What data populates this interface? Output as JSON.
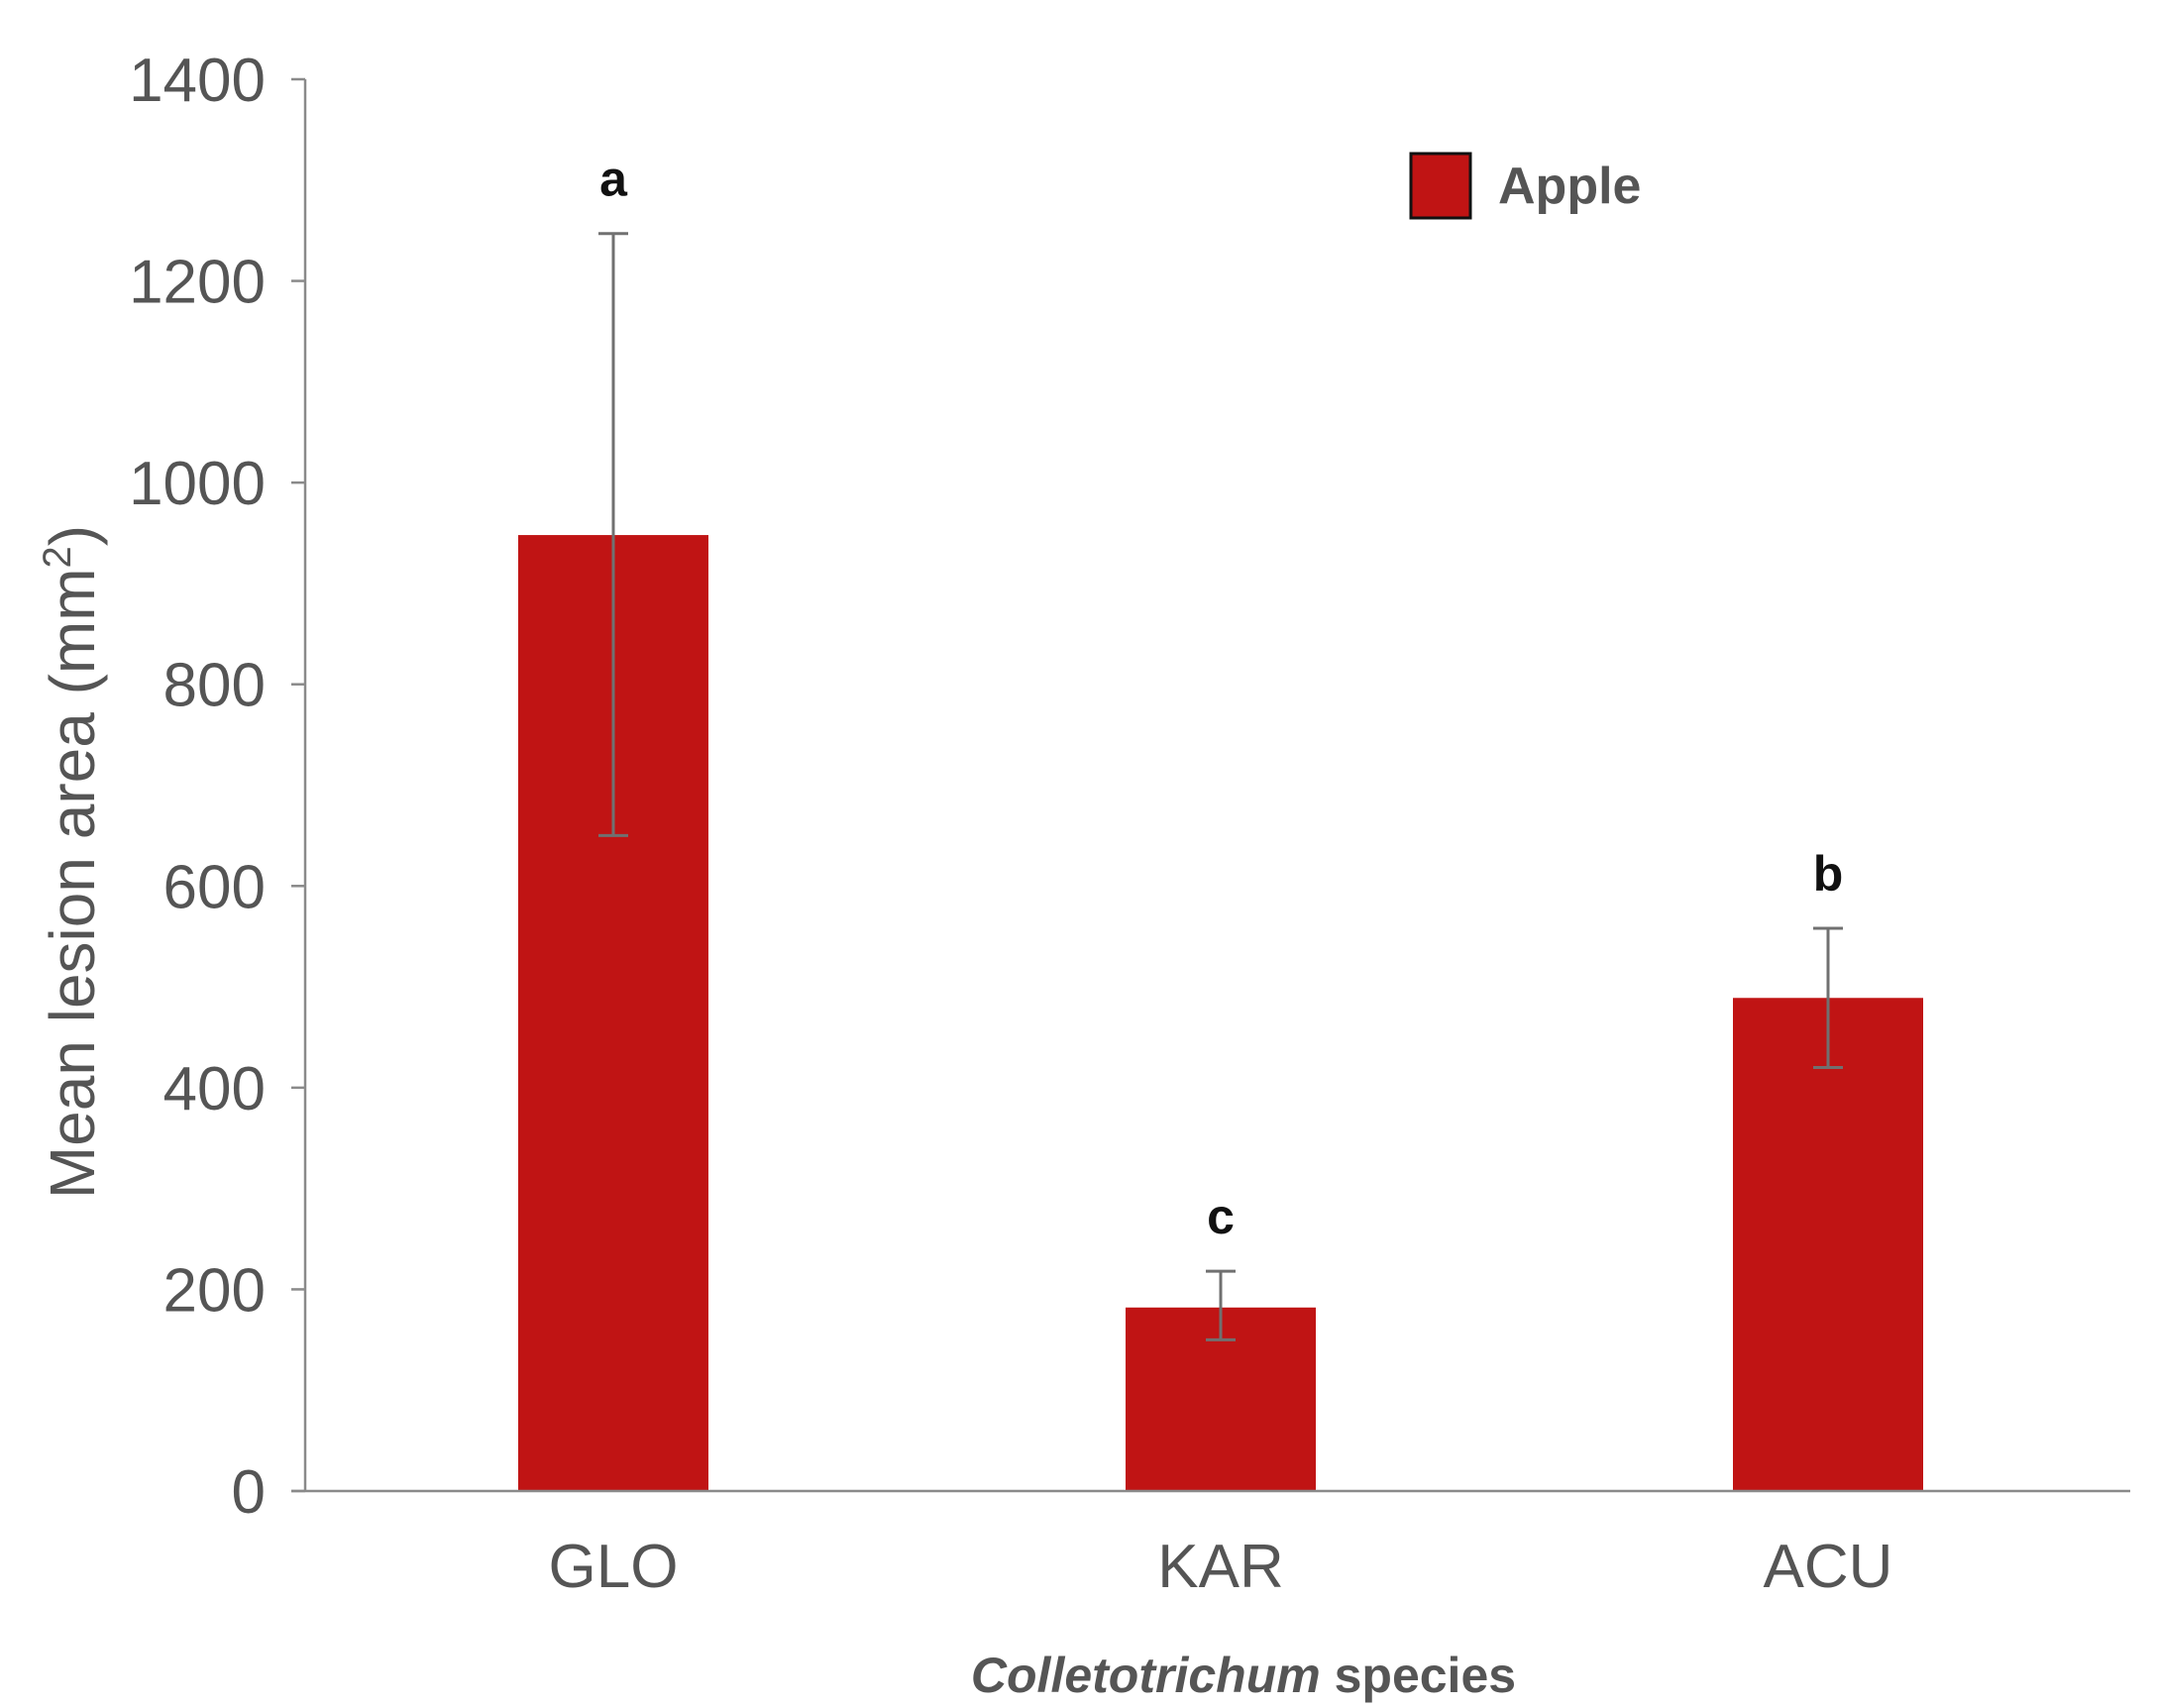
{
  "chart_data": {
    "type": "bar",
    "categories": [
      "GLO",
      "KAR",
      "ACU"
    ],
    "series": [
      {
        "name": "Apple",
        "color": "#c01414",
        "values": [
          948,
          182,
          489
        ],
        "error_upper": [
          1247,
          218,
          558
        ],
        "error_lower": [
          650,
          150,
          420
        ],
        "significance_letters": [
          "a",
          "c",
          "b"
        ]
      }
    ],
    "ylabel": "Mean lesion area (mm",
    "ylabel_superscript": "2",
    "ylabel_suffix": ")",
    "xlabel_italic": "Colletotrichum",
    "xlabel_rest": " species",
    "ylim": [
      0,
      1400
    ],
    "yticks": [
      "0",
      "200",
      "400",
      "600",
      "800",
      "1000",
      "1200",
      "1400"
    ],
    "ytick_values": [
      0,
      200,
      400,
      600,
      800,
      1000,
      1200,
      1400
    ],
    "grid": false,
    "legend_position": "top-right"
  }
}
